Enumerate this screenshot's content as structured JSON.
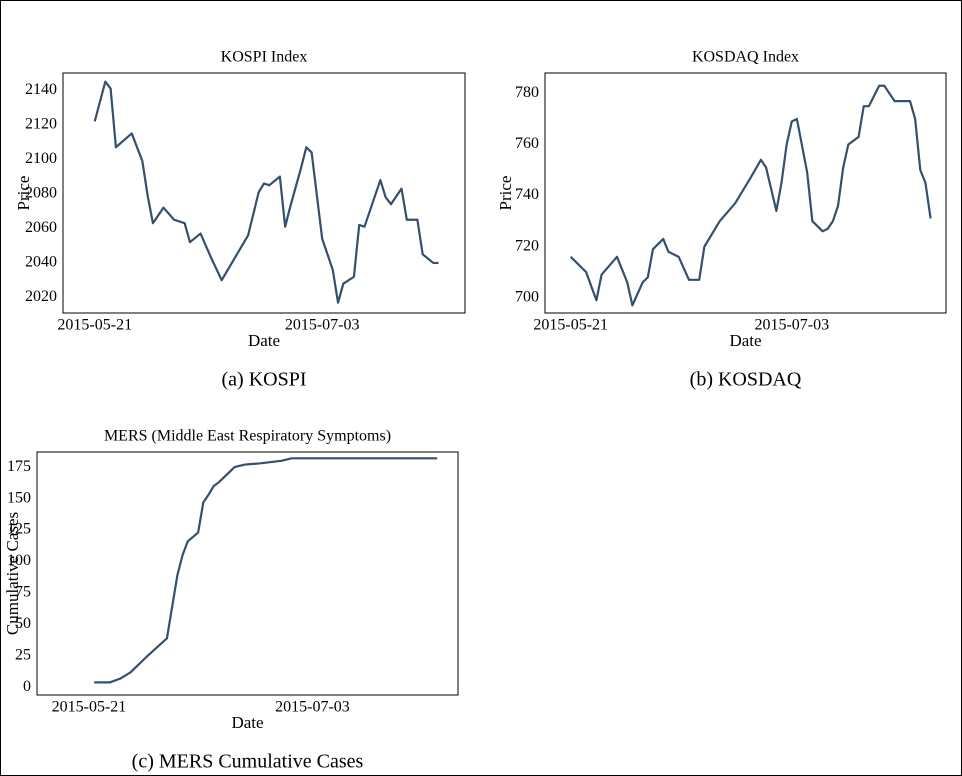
{
  "chart_data": [
    {
      "type": "line",
      "title": "KOSPI Index",
      "xlabel": "Date",
      "ylabel": "Price",
      "caption": "(a) KOSPI",
      "color": "#34506f",
      "grid": false,
      "x": [
        "2015-05-21",
        "2015-05-23",
        "2015-05-24",
        "2015-05-25",
        "2015-05-28",
        "2015-05-30",
        "2015-05-31",
        "2015-06-01",
        "2015-06-03",
        "2015-06-05",
        "2015-06-07",
        "2015-06-08",
        "2015-06-10",
        "2015-06-12",
        "2015-06-14",
        "2015-06-19",
        "2015-06-21",
        "2015-06-22",
        "2015-06-23",
        "2015-06-25",
        "2015-06-26",
        "2015-06-27",
        "2015-06-29",
        "2015-06-30",
        "2015-07-01",
        "2015-07-03",
        "2015-07-05",
        "2015-07-06",
        "2015-07-07",
        "2015-07-09",
        "2015-07-10",
        "2015-07-11",
        "2015-07-14",
        "2015-07-15",
        "2015-07-16",
        "2015-07-18",
        "2015-07-19",
        "2015-07-21",
        "2015-07-22",
        "2015-07-24",
        "2015-07-25"
      ],
      "values": [
        2122,
        2145,
        2141,
        2107,
        2115,
        2099,
        2079,
        2063,
        2072,
        2065,
        2063,
        2052,
        2057,
        2043,
        2030,
        2056,
        2081,
        2086,
        2085,
        2090,
        2061,
        2073,
        2095,
        2107,
        2104,
        2054,
        2036,
        2017,
        2028,
        2032,
        2062,
        2061,
        2088,
        2078,
        2074,
        2083,
        2065,
        2065,
        2045,
        2040,
        2040
      ],
      "xlim": [
        "2015-05-15",
        "2015-07-30"
      ],
      "xticks": [
        "2015-05-21",
        "2015-07-03"
      ],
      "ylim": [
        2011,
        2150
      ],
      "yticks": [
        2020,
        2040,
        2060,
        2080,
        2100,
        2120,
        2140
      ]
    },
    {
      "type": "line",
      "title": "KOSDAQ Index",
      "xlabel": "Date",
      "ylabel": "Price",
      "caption": "(b) KOSDAQ",
      "color": "#34506f",
      "grid": false,
      "x": [
        "2015-05-21",
        "2015-05-24",
        "2015-05-26",
        "2015-05-27",
        "2015-05-30",
        "2015-06-01",
        "2015-06-02",
        "2015-06-04",
        "2015-06-05",
        "2015-06-06",
        "2015-06-08",
        "2015-06-09",
        "2015-06-11",
        "2015-06-13",
        "2015-06-15",
        "2015-06-16",
        "2015-06-19",
        "2015-06-22",
        "2015-06-25",
        "2015-06-27",
        "2015-06-28",
        "2015-06-30",
        "2015-07-01",
        "2015-07-02",
        "2015-07-03",
        "2015-07-04",
        "2015-07-06",
        "2015-07-07",
        "2015-07-09",
        "2015-07-10",
        "2015-07-11",
        "2015-07-12",
        "2015-07-13",
        "2015-07-14",
        "2015-07-16",
        "2015-07-17",
        "2015-07-18",
        "2015-07-20",
        "2015-07-21",
        "2015-07-23",
        "2015-07-26",
        "2015-07-27",
        "2015-07-28",
        "2015-07-29",
        "2015-07-30"
      ],
      "values": [
        716,
        710,
        699,
        709,
        716,
        706,
        697,
        706,
        708,
        719,
        723,
        718,
        716,
        707,
        707,
        720,
        730,
        737,
        747,
        754,
        751,
        734,
        745,
        760,
        769,
        770,
        749,
        730,
        726,
        727,
        730,
        736,
        751,
        760,
        763,
        775,
        775,
        783,
        783,
        777,
        777,
        770,
        750,
        745,
        731
      ],
      "xlim": [
        "2015-05-16",
        "2015-08-02"
      ],
      "xticks": [
        "2015-05-21",
        "2015-07-03"
      ],
      "ylim": [
        694,
        788
      ],
      "yticks": [
        700,
        720,
        740,
        760,
        780
      ]
    },
    {
      "type": "line",
      "title": "MERS (Middle East Respiratory Symptoms)",
      "xlabel": "Date",
      "ylabel": "Cumulative Cases",
      "caption": "(c) MERS Cumulative Cases",
      "color": "#34506f",
      "grid": false,
      "x": [
        "2015-05-22",
        "2015-05-25",
        "2015-05-27",
        "2015-05-29",
        "2015-06-01",
        "2015-06-05",
        "2015-06-07",
        "2015-06-08",
        "2015-06-09",
        "2015-06-11",
        "2015-06-12",
        "2015-06-13",
        "2015-06-14",
        "2015-06-15",
        "2015-06-17",
        "2015-06-18",
        "2015-06-20",
        "2015-06-23",
        "2015-06-27",
        "2015-06-29",
        "2015-06-30",
        "2015-07-27"
      ],
      "values": [
        4,
        4,
        7,
        12,
        24,
        39,
        89,
        105,
        116,
        123,
        147,
        153,
        160,
        163,
        171,
        175,
        177,
        178,
        180,
        182,
        182,
        182
      ],
      "xlim": [
        "2015-05-11",
        "2015-07-31"
      ],
      "xticks": [
        "2015-05-21",
        "2015-07-03"
      ],
      "ylim": [
        -6,
        187
      ],
      "yticks": [
        0,
        25,
        50,
        75,
        100,
        125,
        150,
        175
      ]
    }
  ]
}
